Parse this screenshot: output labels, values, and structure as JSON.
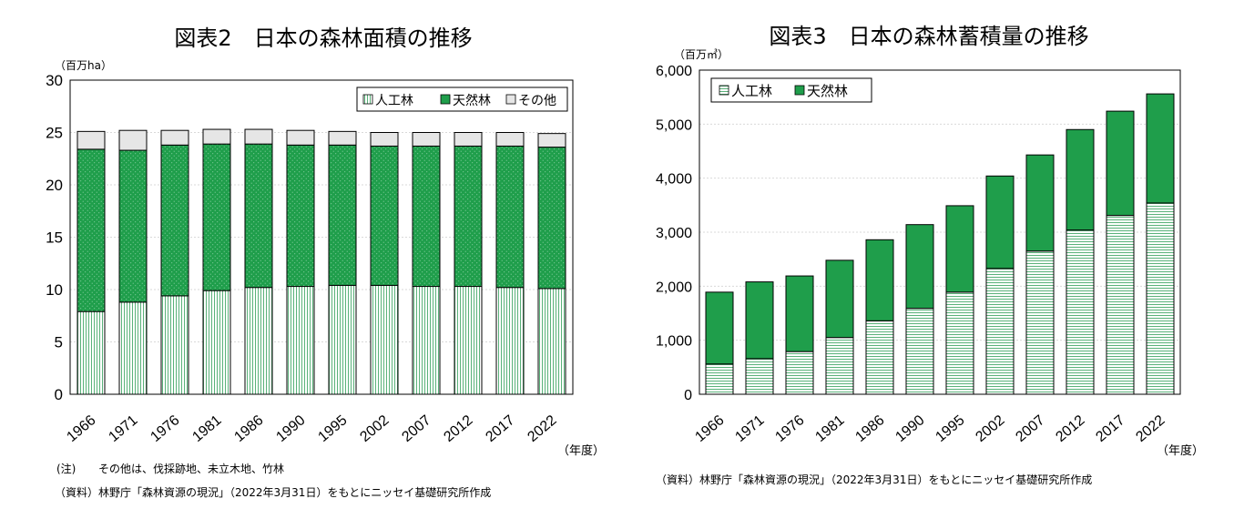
{
  "colors": {
    "natural": "#1f9e4b",
    "planted_line": "#2f9e58",
    "other": "#e6e6e6",
    "axis": "#000000"
  },
  "chart_data": [
    {
      "type": "bar",
      "stacked": true,
      "title": "図表2　日本の森林面積の推移",
      "unit_label": "（百万ha）",
      "xlabel": "（年度）",
      "categories": [
        "1966",
        "1971",
        "1976",
        "1981",
        "1986",
        "1990",
        "1995",
        "2002",
        "2007",
        "2012",
        "2017",
        "2022"
      ],
      "series": [
        {
          "name": "人工林",
          "values": [
            7.9,
            8.8,
            9.4,
            9.9,
            10.2,
            10.3,
            10.4,
            10.4,
            10.3,
            10.3,
            10.2,
            10.1
          ]
        },
        {
          "name": "天然林",
          "values": [
            15.5,
            14.5,
            14.4,
            14.0,
            13.7,
            13.5,
            13.4,
            13.3,
            13.4,
            13.4,
            13.5,
            13.5
          ]
        },
        {
          "name": "その他",
          "values": [
            1.7,
            1.9,
            1.4,
            1.4,
            1.4,
            1.4,
            1.3,
            1.3,
            1.3,
            1.3,
            1.3,
            1.3
          ]
        }
      ],
      "ylim": [
        0,
        30
      ],
      "yticks": [
        "0",
        "5",
        "10",
        "15",
        "20",
        "25",
        "30"
      ],
      "legend": [
        "人工林",
        "天然林",
        "その他"
      ],
      "legend_position": "top-right",
      "note_label": "(注)",
      "note_text": "その他は、伐採跡地、未立木地、竹林",
      "source": "（資料）林野庁「森林資源の現況」（2022年3月31日）をもとにニッセイ基礎研究所作成"
    },
    {
      "type": "bar",
      "stacked": true,
      "title": "図表3　日本の森林蓄積量の推移",
      "unit_label": "（百万㎥）",
      "xlabel": "（年度）",
      "categories": [
        "1966",
        "1971",
        "1976",
        "1981",
        "1986",
        "1990",
        "1995",
        "2002",
        "2007",
        "2012",
        "2017",
        "2022"
      ],
      "series": [
        {
          "name": "人工林",
          "values": [
            560,
            660,
            790,
            1050,
            1360,
            1590,
            1890,
            2330,
            2650,
            3040,
            3310,
            3540
          ]
        },
        {
          "name": "天然林",
          "values": [
            1330,
            1420,
            1400,
            1430,
            1500,
            1550,
            1600,
            1710,
            1780,
            1860,
            1930,
            2020
          ]
        }
      ],
      "ylim": [
        0,
        6000
      ],
      "yticks": [
        "0",
        "1,000",
        "2,000",
        "3,000",
        "4,000",
        "5,000",
        "6,000"
      ],
      "legend": [
        "人工林",
        "天然林"
      ],
      "legend_position": "top-left",
      "source": "（資料）林野庁「森林資源の現況」（2022年3月31日）をもとにニッセイ基礎研究所作成"
    }
  ]
}
